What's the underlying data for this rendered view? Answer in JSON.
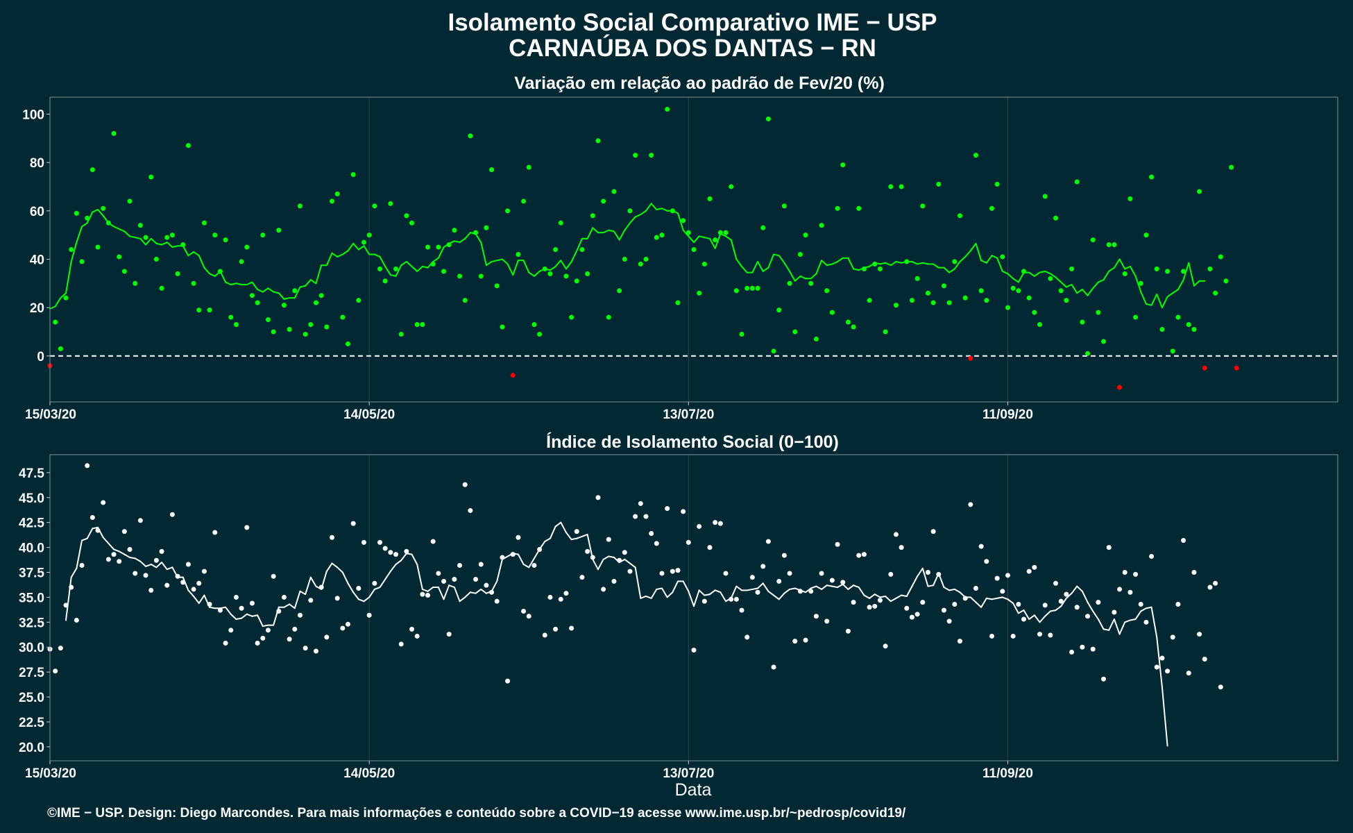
{
  "title_line1": "Isolamento Social Comparativo IME − USP",
  "title_line2": "CARNAÚBA DOS DANTAS − RN",
  "footer": "©IME − USP. Design: Diego Marcondes. Para mais informações e conteúdo sobre a COVID−19 acesse www.ime.usp.br/~pedrosp/covid19/",
  "colors": {
    "background": "#022933",
    "positive": "#00ff00",
    "negative": "#ff0000",
    "index": "#ffffff"
  },
  "chart_data": [
    {
      "type": "scatter",
      "title": "Variação em relação ao padrão de Fev/20 (%)",
      "xlabel": "",
      "ylabel": "",
      "start_date": "15/03/20",
      "x_ticks": [
        "15/03/20",
        "14/05/20",
        "13/07/20",
        "11/09/20"
      ],
      "y_ticks": [
        "0",
        "20",
        "40",
        "60",
        "80",
        "100"
      ],
      "ylim": [
        -19,
        107
      ],
      "reference_line": 0,
      "series": [
        {
          "values": [
            -4,
            14,
            3,
            24,
            44,
            59,
            39,
            57,
            77,
            45,
            61,
            55,
            92,
            41,
            35,
            64,
            30,
            54,
            49,
            74,
            40,
            28,
            49,
            50,
            34,
            46,
            87,
            30,
            19,
            55,
            19,
            50,
            35,
            48,
            16,
            13,
            39,
            45,
            25,
            22,
            50,
            15,
            10,
            52,
            21,
            11,
            27,
            62,
            9,
            13,
            22,
            25,
            12,
            64,
            67,
            16,
            5,
            75,
            23,
            47,
            50,
            62,
            36,
            31,
            63,
            36,
            9,
            58,
            55,
            13,
            13,
            45,
            38,
            45,
            35,
            46,
            52,
            33,
            23,
            91,
            51,
            33,
            53,
            77,
            29,
            12,
            60,
            -8,
            42,
            64,
            78,
            13,
            9,
            36,
            34,
            44,
            55,
            33,
            16,
            31,
            44,
            34,
            58,
            89,
            64,
            16,
            68,
            27,
            40,
            60,
            83,
            38,
            40,
            83,
            49,
            50,
            102,
            60,
            22,
            56,
            51,
            44,
            26,
            38,
            65,
            48,
            51,
            51,
            70,
            27,
            9,
            28,
            28,
            28,
            53,
            98,
            2,
            19,
            62,
            30,
            10,
            42,
            50,
            30,
            7,
            54,
            27,
            18,
            61,
            79,
            14,
            12,
            61,
            36,
            23,
            38,
            36,
            10,
            70,
            21,
            70,
            39,
            23,
            32,
            62,
            26,
            22,
            71,
            29,
            22,
            39,
            58,
            24,
            -1,
            83,
            27,
            23,
            61,
            71,
            41,
            20,
            28,
            27,
            35,
            24,
            18,
            13,
            66,
            32,
            57,
            27,
            23,
            36,
            72,
            14,
            1,
            48,
            18,
            6,
            46,
            46,
            -13,
            34,
            65,
            16,
            30,
            50,
            74,
            36,
            11,
            35,
            2,
            16,
            35,
            13,
            11,
            68,
            -5,
            36,
            26,
            41,
            31,
            78,
            -5
          ]
        }
      ],
      "moving_average_start_day": 0,
      "moving_average": [
        19.5,
        20.5,
        24.0,
        26.0,
        39.0,
        47.0,
        53.5,
        55.0,
        59.5,
        60.5,
        58.0,
        55.0,
        53.5,
        52.5,
        51.5,
        49.5,
        49.0,
        48.5,
        46.0,
        48.5,
        46.5,
        46.0,
        47.0,
        45.0,
        45.5,
        45.5,
        41.5,
        43.0,
        41.5,
        36.5,
        34.0,
        33.0,
        35.0,
        30.5,
        29.5,
        30.0,
        29.5,
        29.5,
        30.5,
        27.5,
        26.5,
        28.0,
        26.5,
        26.0,
        23.5,
        24.0,
        24.0,
        28.5,
        29.0,
        31.5,
        30.0,
        37.5,
        37.5,
        42.5,
        41.0,
        42.0,
        43.5,
        46.5,
        44.0,
        45.5,
        42.0,
        42.0,
        41.0,
        37.0,
        33.5,
        33.0,
        37.5,
        39.0,
        37.0,
        35.0,
        37.0,
        36.5,
        39.0,
        40.5,
        45.0,
        46.5,
        47.5,
        47.0,
        48.5,
        51.0,
        50.5,
        47.0,
        37.5,
        39.0,
        39.5,
        40.0,
        38.0,
        33.5,
        39.5,
        39.5,
        34.5,
        33.0,
        35.0,
        36.0,
        35.5,
        37.0,
        39.5,
        36.0,
        39.0,
        43.5,
        48.5,
        48.5,
        53.0,
        51.0,
        51.0,
        52.0,
        51.5,
        48.0,
        52.0,
        55.0,
        57.5,
        58.5,
        60.0,
        63.0,
        60.5,
        61.0,
        60.0,
        60.0,
        59.0,
        52.0,
        49.5,
        47.0,
        49.5,
        49.0,
        48.5,
        44.5,
        50.5,
        49.5,
        48.0,
        40.0,
        37.0,
        34.5,
        34.5,
        39.0,
        35.0,
        36.5,
        42.0,
        41.5,
        38.5,
        35.0,
        31.0,
        33.0,
        32.0,
        32.0,
        34.0,
        39.5,
        37.5,
        38.0,
        39.0,
        40.5,
        40.5,
        36.0,
        35.5,
        36.5,
        37.0,
        38.5,
        38.0,
        38.5,
        37.5,
        39.0,
        38.5,
        39.0,
        39.0,
        38.0,
        38.5,
        38.0,
        38.0,
        36.5,
        36.5,
        34.5,
        36.0,
        39.0,
        41.0,
        43.5,
        46.5,
        39.5,
        38.5,
        41.5,
        40.5,
        35.0,
        34.0,
        32.0,
        30.5,
        34.5,
        34.5,
        33.0,
        34.5,
        35.0,
        34.0,
        32.5,
        30.5,
        28.5,
        29.5,
        26.0,
        27.5,
        25.0,
        28.0,
        30.5,
        31.5,
        35.0,
        36.5,
        40.0,
        36.0,
        37.0,
        33.0,
        26.5,
        21.5,
        21.0,
        25.5,
        20.0,
        24.5,
        26.0,
        27.5,
        31.5,
        38.5,
        29.0,
        31.0,
        31.0
      ]
    },
    {
      "type": "scatter",
      "title": "Índice de Isolamento Social (0−100)",
      "xlabel": "Data",
      "ylabel": "",
      "start_date": "15/03/20",
      "x_ticks": [
        "15/03/20",
        "14/05/20",
        "13/07/20",
        "11/09/20"
      ],
      "y_ticks": [
        "20.0",
        "22.5",
        "25.0",
        "27.5",
        "30.0",
        "32.5",
        "35.0",
        "37.5",
        "40.0",
        "42.5",
        "45.0",
        "47.5"
      ],
      "ylim": [
        18.6,
        49.3
      ],
      "series": [
        {
          "values": [
            29.8,
            27.6,
            29.9,
            34.2,
            36.0,
            32.7,
            38.2,
            48.2,
            43.0,
            41.7,
            44.5,
            38.8,
            39.3,
            38.6,
            41.6,
            39.8,
            37.4,
            42.7,
            37.2,
            35.7,
            38.7,
            39.6,
            36.2,
            43.3,
            37.1,
            36.5,
            38.3,
            35.8,
            36.4,
            37.6,
            34.3,
            41.5,
            33.7,
            30.4,
            31.7,
            35.0,
            33.9,
            42.0,
            34.4,
            30.4,
            30.9,
            31.7,
            37.1,
            33.6,
            35.0,
            30.8,
            31.8,
            33.2,
            29.9,
            34.7,
            29.6,
            36.0,
            31.0,
            41.0,
            34.9,
            31.9,
            32.3,
            42.4,
            35.9,
            40.5,
            33.2,
            36.4,
            40.5,
            39.9,
            39.5,
            39.3,
            30.3,
            39.6,
            31.8,
            31.1,
            35.3,
            35.2,
            40.6,
            37.4,
            36.6,
            31.3,
            36.8,
            38.2,
            46.3,
            43.7,
            36.8,
            38.3,
            36.2,
            35.5,
            34.6,
            39.0,
            26.6,
            39.3,
            41.0,
            33.6,
            33.1,
            38.2,
            39.8,
            31.2,
            35.0,
            31.8,
            34.8,
            35.4,
            31.9,
            41.6,
            37.0,
            39.6,
            39.0,
            45.0,
            35.8,
            40.8,
            36.6,
            38.7,
            39.5,
            37.6,
            43.1,
            44.4,
            43.1,
            41.4,
            40.4,
            37.4,
            43.9,
            37.6,
            37.7,
            43.6,
            40.5,
            29.7,
            42.1,
            34.6,
            40.0,
            42.5,
            42.4,
            37.4,
            34.8,
            34.8,
            33.7,
            31.0,
            37.0,
            35.5,
            38.1,
            40.6,
            28.0,
            36.6,
            39.2,
            37.4,
            30.6,
            35.6,
            30.7,
            35.6,
            33.1,
            37.4,
            32.6,
            36.7,
            40.3,
            36.5,
            31.6,
            34.5,
            39.2,
            39.3,
            34.0,
            34.1,
            34.7,
            30.1,
            37.3,
            41.3,
            40.0,
            33.9,
            33.0,
            33.3,
            34.5,
            37.5,
            41.6,
            37.3,
            33.7,
            32.6,
            34.3,
            30.6,
            34.9,
            44.3,
            35.9,
            40.1,
            38.6,
            31.1,
            36.9,
            35.6,
            37.2,
            31.1,
            34.3,
            32.8,
            37.6,
            38.0,
            31.3,
            34.2,
            31.2,
            36.4,
            34.6,
            35.3,
            29.5,
            34.0,
            30.0,
            33.1,
            29.8,
            34.5,
            26.8,
            40.0,
            33.5,
            35.8,
            37.5,
            35.5,
            37.3,
            34.3,
            32.5,
            39.1,
            28.0,
            28.9,
            27.6,
            31.0,
            34.3,
            40.7,
            27.4,
            37.5,
            31.3,
            28.8,
            36.0,
            36.4,
            26.0
          ]
        }
      ],
      "moving_average_start_day": 3,
      "moving_average": [
        32.7,
        37.0,
        37.9,
        40.7,
        40.9,
        41.9,
        42.0,
        41.0,
        40.4,
        39.8,
        39.6,
        39.3,
        39.0,
        38.9,
        38.6,
        38.1,
        38.3,
        38.0,
        38.5,
        37.8,
        38.0,
        37.0,
        37.0,
        35.7,
        35.1,
        34.4,
        35.2,
        34.0,
        33.9,
        33.9,
        34.0,
        33.3,
        32.8,
        32.9,
        33.3,
        33.1,
        33.2,
        32.1,
        32.2,
        32.2,
        34.0,
        34.0,
        34.3,
        33.9,
        35.6,
        35.3,
        37.0,
        36.1,
        35.8,
        37.6,
        38.4,
        38.0,
        37.5,
        36.4,
        35.5,
        34.8,
        34.6,
        35.0,
        35.8,
        36.0,
        36.8,
        37.6,
        38.3,
        38.7,
        39.4,
        39.3,
        38.3,
        35.8,
        35.6,
        36.0,
        36.0,
        34.8,
        36.2,
        36.0,
        34.6,
        35.0,
        35.5,
        35.4,
        35.8,
        35.4,
        35.6,
        36.6,
        38.8,
        39.1,
        39.4,
        39.3,
        38.3,
        38.0,
        38.9,
        39.8,
        40.6,
        40.9,
        42.1,
        42.5,
        41.5,
        40.8,
        40.9,
        41.1,
        41.3,
        38.8,
        37.8,
        38.8,
        39.1,
        39.0,
        38.5,
        38.8,
        38.4,
        38.0,
        34.9,
        35.1,
        34.9,
        35.8,
        35.9,
        35.0,
        35.5,
        36.6,
        36.6,
        35.6,
        34.1,
        35.7,
        35.2,
        35.3,
        35.7,
        35.5,
        34.6,
        34.9,
        36.1,
        35.7,
        35.7,
        35.8,
        35.9,
        36.4,
        35.6,
        35.2,
        34.8,
        35.4,
        35.8,
        35.9,
        35.7,
        35.5,
        35.9,
        36.1,
        35.8,
        36.2,
        36.1,
        36.0,
        36.3,
        35.8,
        36.2,
        36.0,
        35.2,
        34.9,
        35.3,
        35.0,
        35.1,
        34.6,
        34.9,
        35.2,
        35.1,
        36.1,
        37.1,
        37.9,
        36.1,
        36.2,
        37.4,
        36.0,
        35.7,
        35.8,
        35.5,
        35.0,
        35.0,
        34.5,
        34.0,
        34.9,
        34.8,
        34.9,
        35.0,
        34.8,
        34.4,
        33.4,
        33.7,
        32.8,
        33.2,
        32.5,
        33.1,
        33.6,
        33.7,
        34.1,
        34.9,
        35.4,
        36.1,
        35.6,
        34.5,
        33.6,
        32.8,
        31.8,
        31.7,
        32.8,
        31.3,
        32.5,
        32.7,
        32.8,
        33.6,
        33.9,
        34.0,
        31.0,
        26.0,
        20.1
      ]
    }
  ]
}
